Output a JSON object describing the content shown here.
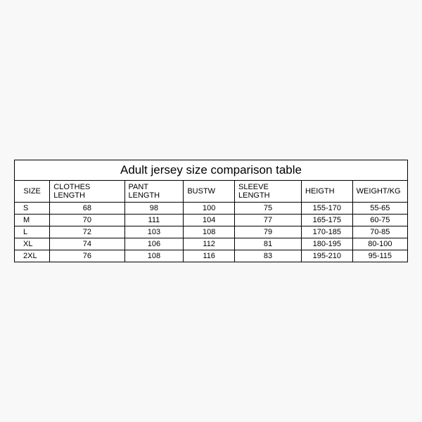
{
  "table": {
    "title": "Adult jersey size comparison table",
    "columns": [
      "SIZE",
      "CLOTHES LENGTH",
      "PANT LENGTH",
      "BUSTW",
      "SLEEVE LENGTH",
      "HEIGTH",
      "WEIGHT/KG"
    ],
    "rows": [
      [
        "S",
        "68",
        "98",
        "100",
        "75",
        "155-170",
        "55-65"
      ],
      [
        "M",
        "70",
        "111",
        "104",
        "77",
        "165-175",
        "60-75"
      ],
      [
        "L",
        "72",
        "103",
        "108",
        "79",
        "170-185",
        "70-85"
      ],
      [
        "XL",
        "74",
        "106",
        "112",
        "81",
        "180-195",
        "80-100"
      ],
      [
        "2XL",
        "76",
        "108",
        "116",
        "83",
        "195-210",
        "95-115"
      ]
    ],
    "column_widths_pct": [
      9,
      19,
      15,
      13,
      17,
      13,
      14
    ],
    "title_fontsize": 17,
    "header_fontsize": 11,
    "cell_fontsize": 11,
    "border_color": "#000000",
    "background_color": "#ffffff",
    "outer_border_width": 1.5,
    "inner_row_border_width": 1
  }
}
